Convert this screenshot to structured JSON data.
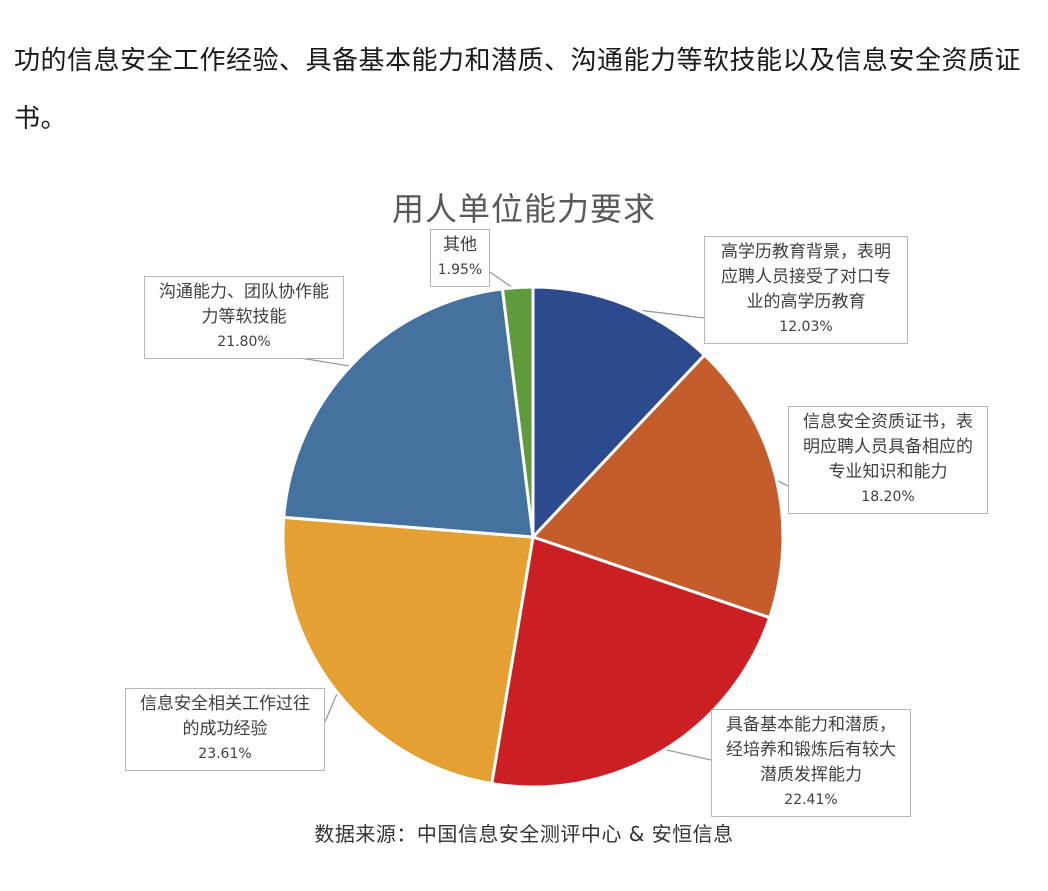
{
  "article": {
    "line1": "功的信息安全工作经验、具备基本能力和潜质、沟通能力等软技能以及信息安全资质证",
    "line2": "书。"
  },
  "chart_data": {
    "type": "pie",
    "title": "用人单位能力要求",
    "source": "数据来源：中国信息安全测评中心 & 安恒信息",
    "slices": [
      {
        "label": "高学历教育背景，表明\n应聘人员接受了对口专\n业的高学历教育",
        "value": 12.03,
        "value_label": "12.03%",
        "color": "#2e4a8e"
      },
      {
        "label": "信息安全资质证书，表\n明应聘人员具备相应的\n专业知识和能力",
        "value": 18.2,
        "value_label": "18.20%",
        "color": "#c45c2c"
      },
      {
        "label": "具备基本能力和潜质，\n经培养和锻炼后有较大\n潜质发挥能力",
        "value": 22.41,
        "value_label": "22.41%",
        "color": "#cc1f24"
      },
      {
        "label": "信息安全相关工作过往\n的成功经验",
        "value": 23.61,
        "value_label": "23.61%",
        "color": "#e4a032"
      },
      {
        "label": "沟通能力、团队协作能\n力等软技能",
        "value": 21.8,
        "value_label": "21.80%",
        "color": "#44719e"
      },
      {
        "label": "其他",
        "value": 1.95,
        "value_label": "1.95%",
        "color": "#5f9a3c"
      }
    ]
  }
}
